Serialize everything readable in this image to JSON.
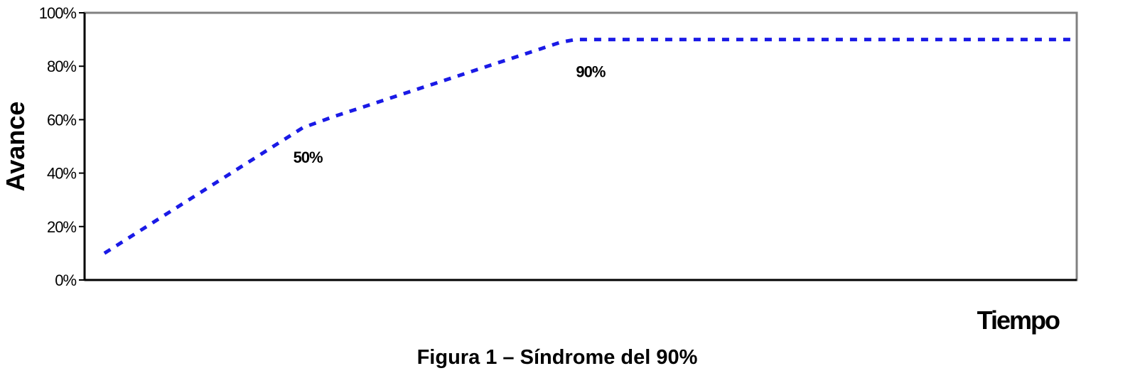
{
  "chart_data": {
    "type": "line",
    "title": "",
    "xlabel": "Tiempo",
    "ylabel": "Avance",
    "caption": "Figura 1 – Síndrome del 90%",
    "ylim": [
      0,
      100
    ],
    "yticks": [
      "0%",
      "20%",
      "40%",
      "60%",
      "80%",
      "100%"
    ],
    "ytick_values": [
      0,
      20,
      40,
      60,
      80,
      100
    ],
    "xlim": [
      0,
      100
    ],
    "grid": false,
    "legend": "none",
    "series": [
      {
        "x": [
          2,
          22,
          25,
          48,
          49.5,
          51,
          100
        ],
        "y": [
          10,
          57,
          61,
          89,
          90,
          90,
          90
        ],
        "color": "#1a1ae6",
        "style": "dashed"
      }
    ],
    "annotations": [
      {
        "text": "50%",
        "x": 22.5,
        "y": 46
      },
      {
        "text": "90%",
        "x": 51,
        "y": 78
      }
    ]
  }
}
